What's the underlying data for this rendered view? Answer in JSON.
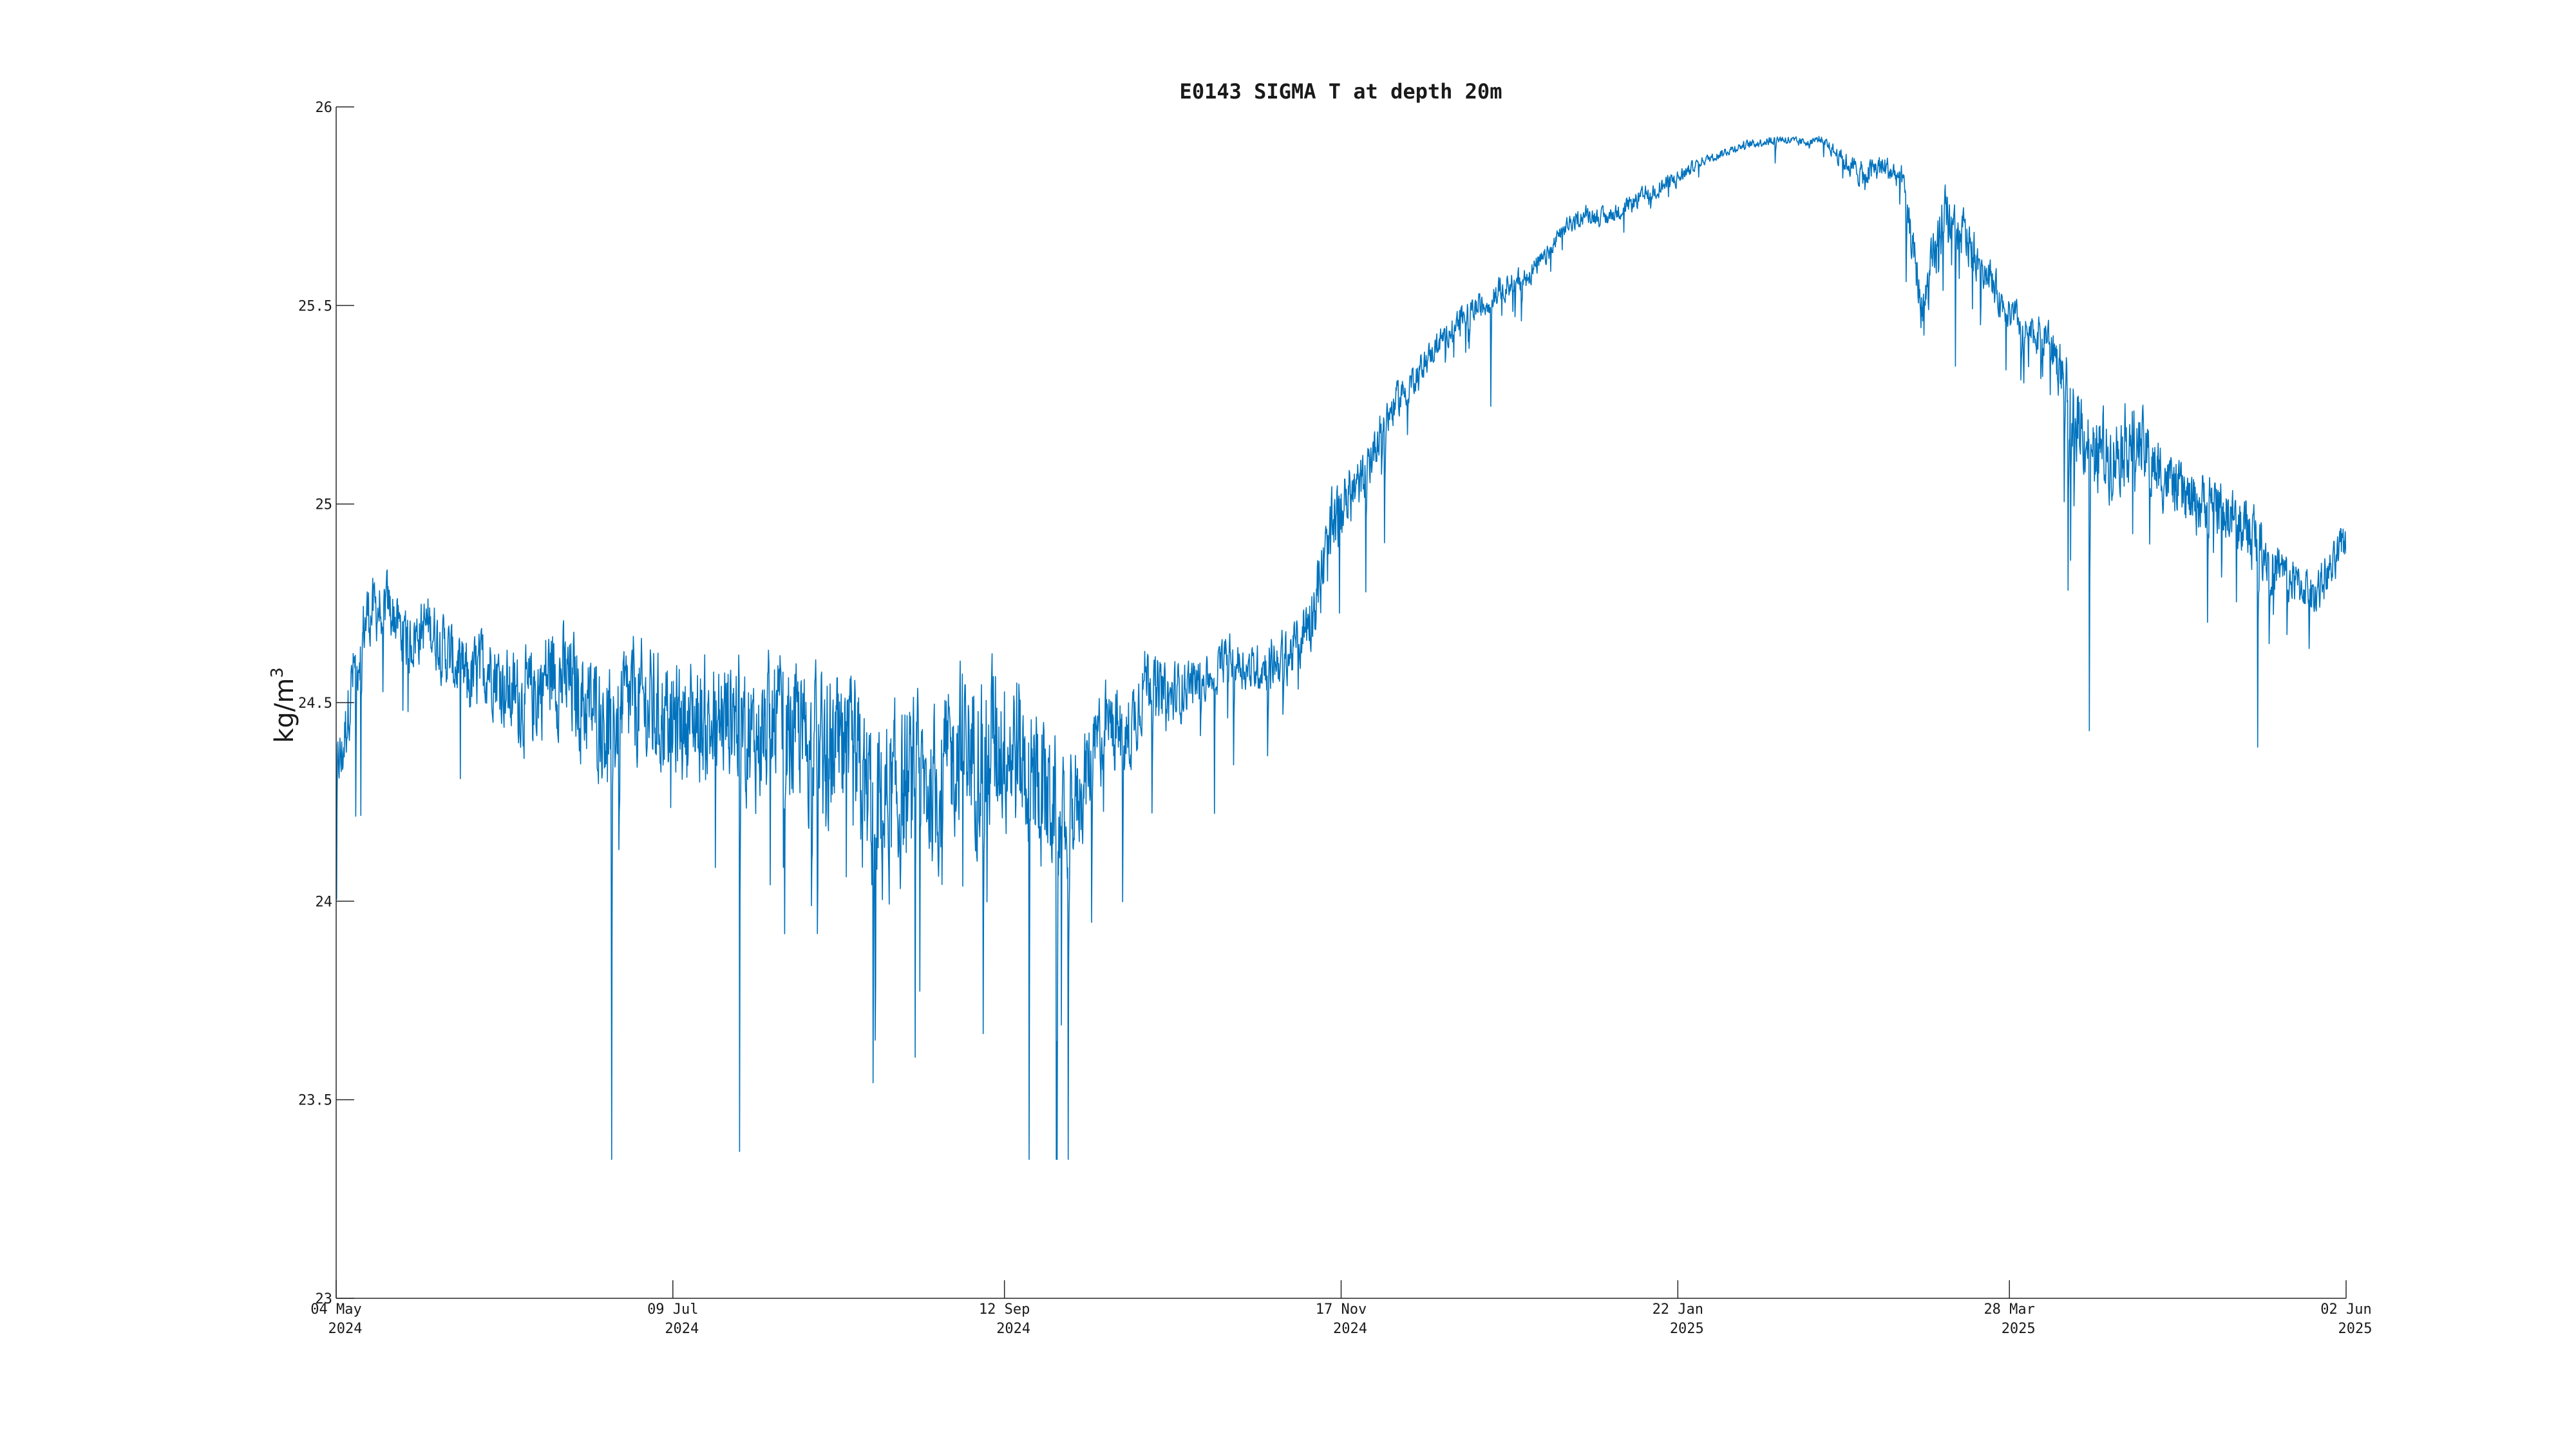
{
  "chart_data": {
    "type": "line",
    "title": "E0143 SIGMA T at depth 20m",
    "xlabel": "",
    "ylabel": "kg/m",
    "ylabel_superscript": "3",
    "ylim": [
      23,
      26
    ],
    "xlim": [
      "2024-05-04",
      "2025-06-02"
    ],
    "yticks": [
      "23",
      "23.5",
      "24",
      "24.5",
      "25",
      "25.5",
      "26"
    ],
    "xticks": [
      {
        "date": "2024-05-04",
        "label": "04 May",
        "year": "2024"
      },
      {
        "date": "2024-07-09",
        "label": "09 Jul",
        "year": "2024"
      },
      {
        "date": "2024-09-12",
        "label": "12 Sep",
        "year": "2024"
      },
      {
        "date": "2024-11-17",
        "label": "17 Nov",
        "year": "2024"
      },
      {
        "date": "2025-01-22",
        "label": "22 Jan",
        "year": "2025"
      },
      {
        "date": "2025-03-28",
        "label": "28 Mar",
        "year": "2025"
      },
      {
        "date": "2025-06-02",
        "label": "02 Jun",
        "year": "2025"
      }
    ],
    "grid": false,
    "line_color": "#0072BD",
    "series": [
      {
        "x": [
          "2024-05-04",
          "2024-05-05",
          "2024-05-07",
          "2024-05-10",
          "2024-05-14",
          "2024-05-18",
          "2024-05-22",
          "2024-05-26",
          "2024-05-30",
          "2024-06-03",
          "2024-06-07",
          "2024-06-11",
          "2024-06-15",
          "2024-06-19",
          "2024-06-23",
          "2024-06-27",
          "2024-07-01",
          "2024-07-05",
          "2024-07-09",
          "2024-07-13",
          "2024-07-17",
          "2024-07-21",
          "2024-07-25",
          "2024-07-29",
          "2024-08-02",
          "2024-08-06",
          "2024-08-10",
          "2024-08-14",
          "2024-08-18",
          "2024-08-22",
          "2024-08-26",
          "2024-08-30",
          "2024-09-03",
          "2024-09-07",
          "2024-09-12",
          "2024-09-16",
          "2024-09-20",
          "2024-09-24",
          "2024-09-28",
          "2024-10-02",
          "2024-10-06",
          "2024-10-10",
          "2024-10-14",
          "2024-10-18",
          "2024-10-22",
          "2024-10-26",
          "2024-10-30",
          "2024-11-03",
          "2024-11-07",
          "2024-11-11",
          "2024-11-15",
          "2024-11-17",
          "2024-11-21",
          "2024-11-25",
          "2024-11-29",
          "2024-12-03",
          "2024-12-07",
          "2024-12-11",
          "2024-12-15",
          "2024-12-19",
          "2024-12-23",
          "2024-12-27",
          "2024-12-31",
          "2025-01-04",
          "2025-01-08",
          "2025-01-12",
          "2025-01-16",
          "2025-01-22",
          "2025-01-26",
          "2025-01-30",
          "2025-02-03",
          "2025-02-07",
          "2025-02-11",
          "2025-02-15",
          "2025-02-19",
          "2025-02-23",
          "2025-02-27",
          "2025-03-03",
          "2025-03-07",
          "2025-03-11",
          "2025-03-15",
          "2025-03-19",
          "2025-03-23",
          "2025-03-26",
          "2025-03-28",
          "2025-04-01",
          "2025-04-05",
          "2025-04-09",
          "2025-04-13",
          "2025-04-17",
          "2025-04-21",
          "2025-04-25",
          "2025-04-29",
          "2025-05-03",
          "2025-05-07",
          "2025-05-11",
          "2025-05-15",
          "2025-05-19",
          "2025-05-23",
          "2025-05-27",
          "2025-05-31",
          "2025-06-02"
        ],
        "values": [
          24.38,
          24.35,
          24.55,
          24.72,
          24.75,
          24.65,
          24.7,
          24.62,
          24.55,
          24.6,
          24.52,
          24.5,
          24.58,
          24.54,
          24.48,
          24.45,
          24.5,
          24.48,
          24.45,
          24.46,
          24.44,
          24.48,
          24.4,
          24.45,
          24.42,
          24.38,
          24.36,
          24.3,
          24.22,
          24.25,
          24.3,
          24.28,
          24.4,
          24.38,
          24.42,
          24.35,
          24.28,
          24.18,
          24.32,
          24.45,
          24.4,
          24.58,
          24.5,
          24.55,
          24.56,
          24.62,
          24.58,
          24.6,
          24.62,
          24.72,
          24.9,
          25.0,
          25.05,
          25.2,
          25.28,
          25.35,
          25.42,
          25.48,
          25.5,
          25.55,
          25.57,
          25.62,
          25.7,
          25.73,
          25.72,
          25.75,
          25.78,
          25.82,
          25.86,
          25.88,
          25.9,
          25.91,
          25.92,
          25.91,
          25.92,
          25.87,
          25.83,
          25.85,
          25.82,
          25.48,
          25.72,
          25.68,
          25.6,
          25.52,
          25.48,
          25.43,
          25.42,
          25.25,
          25.15,
          25.12,
          25.18,
          25.1,
          25.05,
          25.0,
          25.02,
          24.96,
          24.92,
          24.85,
          24.8,
          24.78,
          24.85,
          24.92
        ],
        "noise": [
          0.06,
          0.08,
          0.08,
          0.08,
          0.07,
          0.07,
          0.07,
          0.08,
          0.09,
          0.09,
          0.1,
          0.12,
          0.12,
          0.13,
          0.13,
          0.14,
          0.14,
          0.14,
          0.14,
          0.14,
          0.15,
          0.15,
          0.15,
          0.16,
          0.16,
          0.18,
          0.18,
          0.2,
          0.22,
          0.2,
          0.18,
          0.18,
          0.18,
          0.2,
          0.2,
          0.2,
          0.18,
          0.14,
          0.12,
          0.1,
          0.1,
          0.08,
          0.08,
          0.06,
          0.05,
          0.05,
          0.05,
          0.06,
          0.06,
          0.08,
          0.1,
          0.08,
          0.06,
          0.05,
          0.04,
          0.03,
          0.03,
          0.03,
          0.03,
          0.03,
          0.03,
          0.02,
          0.02,
          0.02,
          0.02,
          0.02,
          0.02,
          0.02,
          0.01,
          0.01,
          0.01,
          0.01,
          0.01,
          0.01,
          0.01,
          0.02,
          0.03,
          0.03,
          0.03,
          0.06,
          0.07,
          0.06,
          0.05,
          0.04,
          0.04,
          0.04,
          0.05,
          0.09,
          0.1,
          0.09,
          0.09,
          0.08,
          0.07,
          0.07,
          0.07,
          0.07,
          0.08,
          0.06,
          0.05,
          0.05,
          0.05,
          0.05
        ]
      }
    ]
  }
}
